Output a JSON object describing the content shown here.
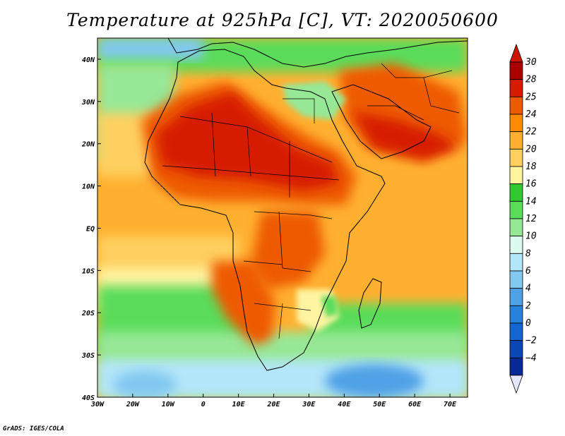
{
  "title": "Temperature at 925hPa [C], VT: 2020050600",
  "credit": "GrADS: IGES/COLA",
  "map": {
    "lon_range": [
      -30,
      75
    ],
    "lat_range": [
      -40,
      45
    ],
    "x_ticks": [
      {
        "value": -30,
        "label": "30W"
      },
      {
        "value": -20,
        "label": "20W"
      },
      {
        "value": -10,
        "label": "10W"
      },
      {
        "value": 0,
        "label": "0"
      },
      {
        "value": 10,
        "label": "10E"
      },
      {
        "value": 20,
        "label": "20E"
      },
      {
        "value": 30,
        "label": "30E"
      },
      {
        "value": 40,
        "label": "40E"
      },
      {
        "value": 50,
        "label": "50E"
      },
      {
        "value": 60,
        "label": "60E"
      },
      {
        "value": 70,
        "label": "70E"
      }
    ],
    "y_ticks": [
      {
        "value": 40,
        "label": "40N"
      },
      {
        "value": 30,
        "label": "30N"
      },
      {
        "value": 20,
        "label": "20N"
      },
      {
        "value": 10,
        "label": "10N"
      },
      {
        "value": 0,
        "label": "EQ"
      },
      {
        "value": -10,
        "label": "10S"
      },
      {
        "value": -20,
        "label": "20S"
      },
      {
        "value": -30,
        "label": "30S"
      },
      {
        "value": -40,
        "label": "40S"
      }
    ]
  },
  "colorbar": {
    "levels": [
      {
        "label": "30",
        "color": "#aa0000"
      },
      {
        "label": "28",
        "color": "#d61c00"
      },
      {
        "label": "25",
        "color": "#ee5a00"
      },
      {
        "label": "24",
        "color": "#ff8c00"
      },
      {
        "label": "22",
        "color": "#ffb030"
      },
      {
        "label": "20",
        "color": "#ffd060"
      },
      {
        "label": "18",
        "color": "#fff4a0"
      },
      {
        "label": "16",
        "color": "#32c832"
      },
      {
        "label": "14",
        "color": "#5adc5a"
      },
      {
        "label": "12",
        "color": "#96e896"
      },
      {
        "label": "10",
        "color": "#dcfaf0"
      },
      {
        "label": "8",
        "color": "#b4e6fa"
      },
      {
        "label": "6",
        "color": "#82c8f0"
      },
      {
        "label": "4",
        "color": "#50a0e6"
      },
      {
        "label": "2",
        "color": "#2882dc"
      },
      {
        "label": "0",
        "color": "#1464d2"
      },
      {
        "label": "−2",
        "color": "#0a46b4"
      },
      {
        "label": "−4",
        "color": "#082896"
      }
    ],
    "top_arrow_color": "#cc1400",
    "bottom_arrow_color": "#e6e6ff",
    "bottom_block_color": "#141464"
  }
}
